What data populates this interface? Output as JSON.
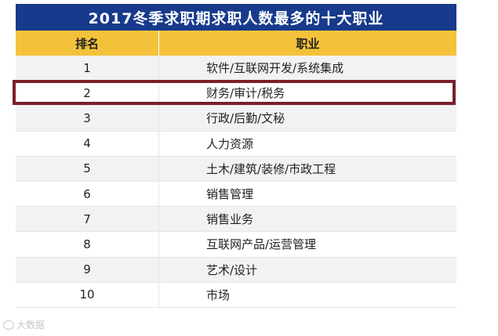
{
  "title": "2017冬季求职期求职人数最多的十大职业",
  "header": {
    "rank": "排名",
    "job": "职业"
  },
  "rows": [
    {
      "rank": "1",
      "job": "软件/互联网开发/系统集成"
    },
    {
      "rank": "2",
      "job": "财务/审计/税务"
    },
    {
      "rank": "3",
      "job": "行政/后勤/文秘"
    },
    {
      "rank": "4",
      "job": "人力资源"
    },
    {
      "rank": "5",
      "job": "土木/建筑/装修/市政工程"
    },
    {
      "rank": "6",
      "job": "销售管理"
    },
    {
      "rank": "7",
      "job": "销售业务"
    },
    {
      "rank": "8",
      "job": "互联网产品/运营管理"
    },
    {
      "rank": "9",
      "job": "艺术/设计"
    },
    {
      "rank": "10",
      "job": "市场"
    }
  ],
  "highlighted_rank": "2",
  "watermark": "大数据",
  "colors": {
    "title_bg": "#173a8c",
    "header_bg": "#f4c23a",
    "highlight_border": "#7a1f2b"
  },
  "icons": {
    "watermark": "wechat-icon"
  }
}
